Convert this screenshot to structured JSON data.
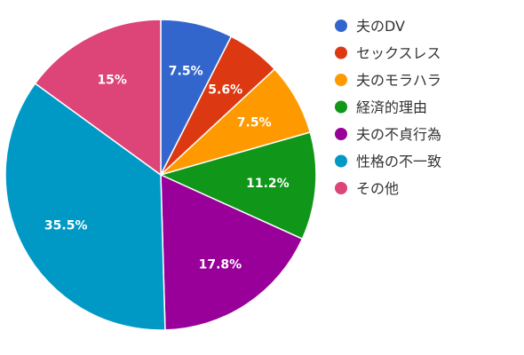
{
  "chart_data": {
    "type": "pie",
    "title": "",
    "start_angle_deg": 0,
    "direction": "clockwise",
    "legend_position": "right",
    "slices": [
      {
        "label": "夫のDV",
        "value": 7.5,
        "display": "7.5%",
        "color": "#3366cc"
      },
      {
        "label": "セックスレス",
        "value": 5.6,
        "display": "5.6%",
        "color": "#dc3912"
      },
      {
        "label": "夫のモラハラ",
        "value": 7.5,
        "display": "7.5%",
        "color": "#ff9900"
      },
      {
        "label": "経済的理由",
        "value": 11.2,
        "display": "11.2%",
        "color": "#109618"
      },
      {
        "label": "夫の不貞行為",
        "value": 17.8,
        "display": "17.8%",
        "color": "#990099"
      },
      {
        "label": "性格の不一致",
        "value": 35.5,
        "display": "35.5%",
        "color": "#0099c6"
      },
      {
        "label": "その他",
        "value": 15,
        "display": "15%",
        "color": "#dd4477"
      }
    ]
  }
}
